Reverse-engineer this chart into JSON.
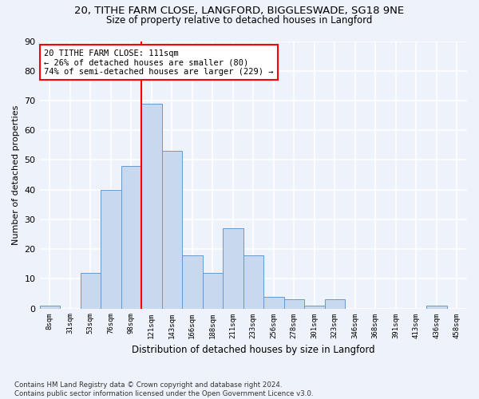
{
  "title1": "20, TITHE FARM CLOSE, LANGFORD, BIGGLESWADE, SG18 9NE",
  "title2": "Size of property relative to detached houses in Langford",
  "xlabel": "Distribution of detached houses by size in Langford",
  "ylabel": "Number of detached properties",
  "categories": [
    "8sqm",
    "31sqm",
    "53sqm",
    "76sqm",
    "98sqm",
    "121sqm",
    "143sqm",
    "166sqm",
    "188sqm",
    "211sqm",
    "233sqm",
    "256sqm",
    "278sqm",
    "301sqm",
    "323sqm",
    "346sqm",
    "368sqm",
    "391sqm",
    "413sqm",
    "436sqm",
    "458sqm"
  ],
  "values": [
    1,
    0,
    12,
    40,
    48,
    69,
    53,
    18,
    12,
    27,
    18,
    4,
    3,
    1,
    3,
    0,
    0,
    0,
    0,
    1,
    0
  ],
  "bar_color": "#c8d8ee",
  "bar_edge_color": "#6699cc",
  "vline_x": 5.0,
  "vline_color": "red",
  "annotation_text": "20 TITHE FARM CLOSE: 111sqm\n← 26% of detached houses are smaller (80)\n74% of semi-detached houses are larger (229) →",
  "annotation_box_color": "white",
  "annotation_box_edge": "red",
  "ylim": [
    0,
    90
  ],
  "yticks": [
    0,
    10,
    20,
    30,
    40,
    50,
    60,
    70,
    80,
    90
  ],
  "footer": "Contains HM Land Registry data © Crown copyright and database right 2024.\nContains public sector information licensed under the Open Government Licence v3.0.",
  "bg_color": "#eef2fa",
  "grid_color": "#ffffff",
  "title1_fontsize": 9.5,
  "title2_fontsize": 8.5,
  "xlabel_fontsize": 8.5,
  "ylabel_fontsize": 8,
  "annot_fontsize": 7.5
}
